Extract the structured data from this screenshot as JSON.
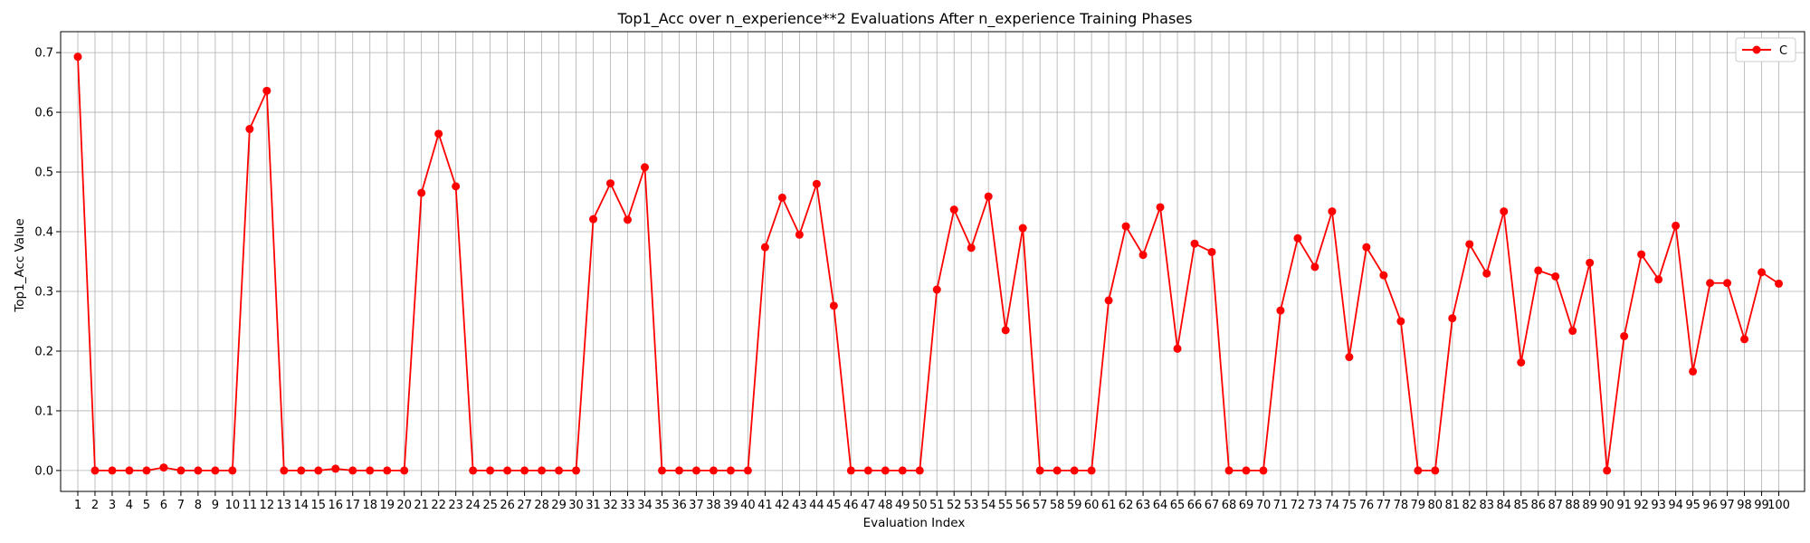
{
  "chart_data": {
    "type": "line",
    "title": "Top1_Acc over n_experience**2 Evaluations After n_experience Training Phases",
    "xlabel": "Evaluation Index",
    "ylabel": "Top1_Acc Value",
    "xlim": [
      0,
      101.5
    ],
    "ylim": [
      -0.035,
      0.735
    ],
    "yticks": [
      0.0,
      0.1,
      0.2,
      0.3,
      0.4,
      0.5,
      0.6,
      0.7
    ],
    "ytick_labels": [
      "0.0",
      "0.1",
      "0.2",
      "0.3",
      "0.4",
      "0.5",
      "0.6",
      "0.7"
    ],
    "grid": true,
    "legend_position": "top-right",
    "x": [
      1,
      2,
      3,
      4,
      5,
      6,
      7,
      8,
      9,
      10,
      11,
      12,
      13,
      14,
      15,
      16,
      17,
      18,
      19,
      20,
      21,
      22,
      23,
      24,
      25,
      26,
      27,
      28,
      29,
      30,
      31,
      32,
      33,
      34,
      35,
      36,
      37,
      38,
      39,
      40,
      41,
      42,
      43,
      44,
      45,
      46,
      47,
      48,
      49,
      50,
      51,
      52,
      53,
      54,
      55,
      56,
      57,
      58,
      59,
      60,
      61,
      62,
      63,
      64,
      65,
      66,
      67,
      68,
      69,
      70,
      71,
      72,
      73,
      74,
      75,
      76,
      77,
      78,
      79,
      80,
      81,
      82,
      83,
      84,
      85,
      86,
      87,
      88,
      89,
      90,
      91,
      92,
      93,
      94,
      95,
      96,
      97,
      98,
      99,
      100
    ],
    "series": [
      {
        "name": "C",
        "color": "#ff0000",
        "marker": "circle",
        "values": [
          0.693,
          0.0,
          0.0,
          0.0,
          0.0,
          0.005,
          0.0,
          0.0,
          0.0,
          0.0,
          0.572,
          0.636,
          0.0,
          0.0,
          0.0,
          0.003,
          0.0,
          0.0,
          0.0,
          0.0,
          0.465,
          0.564,
          0.476,
          0.0,
          0.0,
          0.0,
          0.0,
          0.0,
          0.0,
          0.0,
          0.421,
          0.481,
          0.42,
          0.508,
          0.0,
          0.0,
          0.0,
          0.0,
          0.0,
          0.0,
          0.374,
          0.457,
          0.395,
          0.48,
          0.276,
          0.0,
          0.0,
          0.0,
          0.0,
          0.0,
          0.303,
          0.437,
          0.373,
          0.459,
          0.235,
          0.406,
          0.0,
          0.0,
          0.0,
          0.0,
          0.285,
          0.409,
          0.361,
          0.441,
          0.204,
          0.38,
          0.366,
          0.0,
          0.0,
          0.0,
          0.268,
          0.389,
          0.341,
          0.434,
          0.19,
          0.374,
          0.327,
          0.25,
          0.0,
          0.0,
          0.255,
          0.379,
          0.33,
          0.434,
          0.181,
          0.335,
          0.325,
          0.234,
          0.348,
          0.0,
          0.225,
          0.362,
          0.32,
          0.41,
          0.166,
          0.314,
          0.314,
          0.22,
          0.332,
          0.313
        ]
      }
    ]
  }
}
